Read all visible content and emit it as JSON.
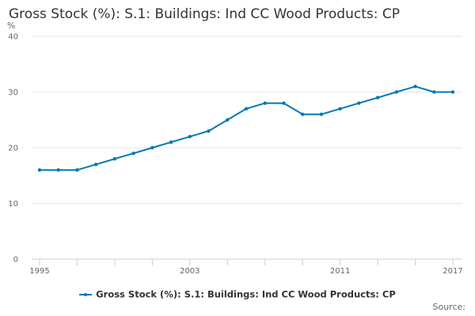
{
  "colors": {
    "series": "#0077b6",
    "grid": "#e6e6e6",
    "axis": "#cccccc",
    "text": "#333333",
    "muted": "#666666"
  },
  "source_label": "Source:",
  "chart_data": {
    "type": "line",
    "title": "Gross Stock (%): S.1: Buildings: Ind CC Wood Products: CP",
    "ylabel": "%",
    "xlabel": "",
    "ylim": [
      0,
      40
    ],
    "yticks": [
      0,
      10,
      20,
      30,
      40
    ],
    "xlim": [
      1995,
      2017
    ],
    "xticks": [
      1995,
      2003,
      2011,
      2017
    ],
    "x_minor_ticks": [
      1995,
      1997,
      1999,
      2001,
      2003,
      2005,
      2007,
      2009,
      2011,
      2013,
      2015,
      2017
    ],
    "grid": "horizontal",
    "legend_position": "bottom",
    "series": [
      {
        "name": "Gross Stock (%): S.1: Buildings: Ind CC Wood Products: CP",
        "x": [
          1995,
          1996,
          1997,
          1998,
          1999,
          2000,
          2001,
          2002,
          2003,
          2004,
          2005,
          2006,
          2007,
          2008,
          2009,
          2010,
          2011,
          2012,
          2013,
          2014,
          2015,
          2016,
          2017
        ],
        "values": [
          16,
          16,
          16,
          17,
          18,
          19,
          20,
          21,
          22,
          23,
          25,
          27,
          28,
          28,
          26,
          26,
          27,
          28,
          29,
          30,
          31,
          30,
          30
        ]
      }
    ]
  }
}
